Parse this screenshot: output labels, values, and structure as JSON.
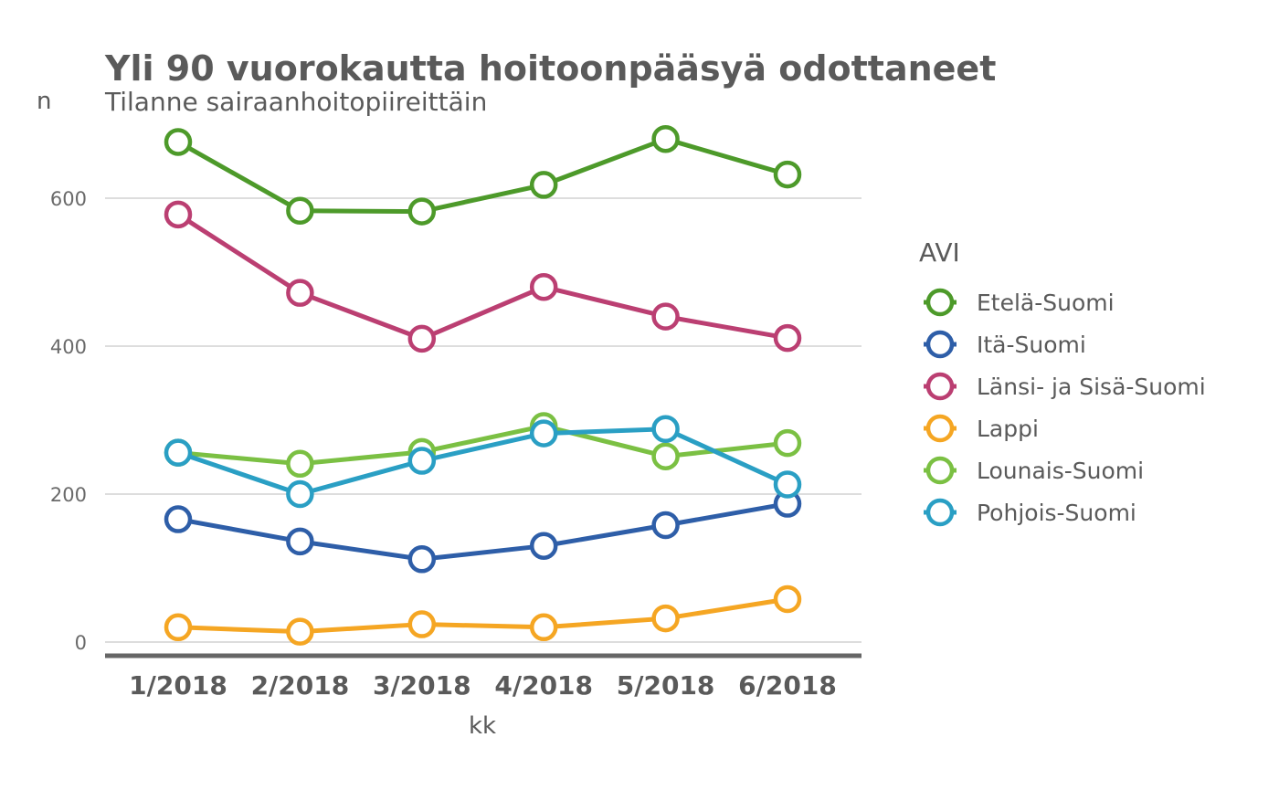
{
  "chart_data": {
    "type": "line",
    "title": "Yli 90 vuorokautta hoitoonpääsyä odottaneet",
    "subtitle": "Tilanne sairaanhoitopiireittäin",
    "xlabel": "kk",
    "ylabel": "n",
    "categories": [
      "1/2018",
      "2/2018",
      "3/2018",
      "4/2018",
      "5/2018",
      "6/2018"
    ],
    "ylim": [
      -20,
      700
    ],
    "yticks": [
      0,
      200,
      400,
      600
    ],
    "grid": true,
    "legend": {
      "title": "AVI",
      "position": "right"
    },
    "series": [
      {
        "name": "Etelä-Suomi",
        "color": "#4d9a2a",
        "values": [
          676,
          583,
          582,
          618,
          680,
          632
        ]
      },
      {
        "name": "Itä-Suomi",
        "color": "#2e5ea8",
        "values": [
          166,
          136,
          112,
          130,
          158,
          187
        ]
      },
      {
        "name": "Länsi- ja Sisä-Suomi",
        "color": "#bb3f72",
        "values": [
          578,
          472,
          410,
          480,
          440,
          411
        ]
      },
      {
        "name": "Lappi",
        "color": "#f5a623",
        "values": [
          20,
          14,
          24,
          20,
          32,
          58
        ]
      },
      {
        "name": "Lounais-Suomi",
        "color": "#7bc043",
        "values": [
          256,
          241,
          257,
          292,
          251,
          269
        ]
      },
      {
        "name": "Pohjois-Suomi",
        "color": "#2a9fc4",
        "values": [
          256,
          200,
          245,
          282,
          288,
          213
        ]
      }
    ]
  }
}
